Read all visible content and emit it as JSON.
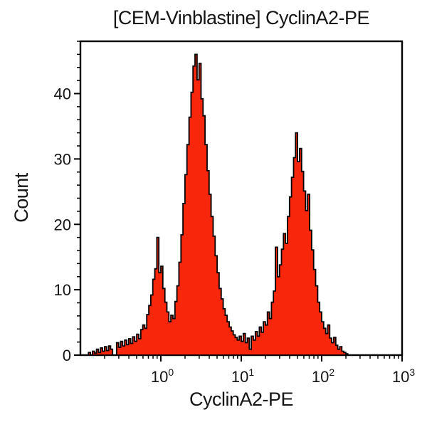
{
  "chart_data": {
    "type": "area",
    "subtype": "flow-cytometry-step-histogram",
    "title": "[CEM-Vinblastine] CyclinA2-PE",
    "xlabel": "CyclinA2-PE",
    "ylabel": "Count",
    "x_scale": "log10",
    "x_log_range": [
      -1,
      3
    ],
    "y_range": [
      0,
      48
    ],
    "x_tick_base": "10",
    "x_major_tick_exponents": [
      0,
      1,
      2,
      3
    ],
    "x_minor_ticks_per_decade": [
      2,
      3,
      4,
      5,
      6,
      7,
      8,
      9
    ],
    "y_major_ticks": [
      0,
      10,
      20,
      30,
      40
    ],
    "y_minor_tick_step": 2,
    "grid": false,
    "legend": false,
    "frame": "full-box",
    "fill_color": "#f8260a",
    "outline_color": "#000000",
    "frame_color": "#000000",
    "text_color": "#151515",
    "peaks_approx": [
      {
        "x": 0.9,
        "count": 18
      },
      {
        "x": 2.7,
        "count": 46
      },
      {
        "x": 47,
        "count": 34
      }
    ],
    "bins": {
      "log_start": -1.0,
      "log_step": 0.025,
      "counts": [
        0,
        0,
        0,
        0,
        0.4,
        0,
        0.6,
        0.3,
        0.9,
        0.4,
        1.1,
        0.6,
        1.3,
        0.7,
        1.4,
        0.9,
        0,
        0,
        1.9,
        1.2,
        2.1,
        1.4,
        2.3,
        1.6,
        2.5,
        1.8,
        2.8,
        2.1,
        3.2,
        2.5,
        3.9,
        4.6,
        4.1,
        6.2,
        7.6,
        9.2,
        11.6,
        13.2,
        18.0,
        12.6,
        13.6,
        10.2,
        8.1,
        6.6,
        5.1,
        6.1,
        5.6,
        8.2,
        10.6,
        14.2,
        18.4,
        23.2,
        27.6,
        32.2,
        36.4,
        40.2,
        44.2,
        46.0,
        42.1,
        44.6,
        39.2,
        36.6,
        32.2,
        28.2,
        24.6,
        21.2,
        18.2,
        15.2,
        12.6,
        10.2,
        8.6,
        7.1,
        6.1,
        5.1,
        4.3,
        3.7,
        3.1,
        2.7,
        2.3,
        2.9,
        2.1,
        3.3,
        1.9,
        2.6,
        0.9,
        2.9,
        2.3,
        3.6,
        2.9,
        4.3,
        3.5,
        5.1,
        4.6,
        6.6,
        5.6,
        8.1,
        9.8,
        16.5,
        12.0,
        13.8,
        16.2,
        18.6,
        17.1,
        21.2,
        24.2,
        27.2,
        30.2,
        34.0,
        29.6,
        31.6,
        28.1,
        25.1,
        22.1,
        24.6,
        19.1,
        16.1,
        13.1,
        10.6,
        8.1,
        6.6,
        5.1,
        4.1,
        3.3,
        4.6,
        2.6,
        1.9,
        2.7,
        1.5,
        0.9,
        1.3,
        0.6,
        0.4,
        0.2,
        0,
        0,
        0,
        0
      ]
    }
  }
}
